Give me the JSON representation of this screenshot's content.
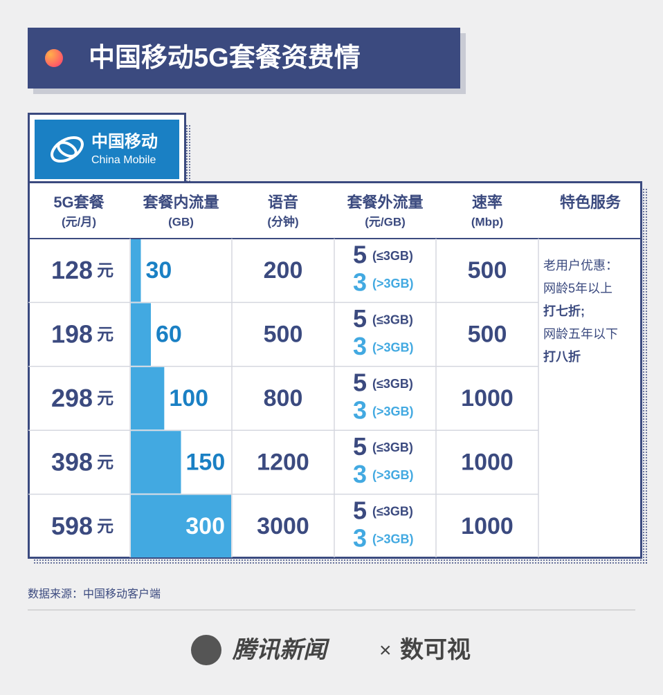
{
  "header": {
    "title": "中国移动5G套餐资费情"
  },
  "logo": {
    "name_cn": "中国移动",
    "name_en": "China Mobile"
  },
  "table": {
    "columns": [
      {
        "title": "5G套餐",
        "unit": "(元/月)"
      },
      {
        "title": "套餐内流量",
        "unit": "(GB)"
      },
      {
        "title": "语音",
        "unit": "(分钟)"
      },
      {
        "title": "套餐外流量",
        "unit": "(元/GB)"
      },
      {
        "title": "速率",
        "unit": "(Mbp)"
      },
      {
        "title": "特色服务"
      }
    ],
    "rows": [
      {
        "price": 128,
        "price_unit": "元",
        "data": 30,
        "voice": 200,
        "overage": [
          {
            "price": 5,
            "condition": "(≤3GB)"
          },
          {
            "price": 3,
            "condition": "(>3GB)"
          }
        ],
        "speed": 500
      },
      {
        "price": 198,
        "price_unit": "元",
        "data": 60,
        "voice": 500,
        "overage": [
          {
            "price": 5,
            "condition": "(≤3GB)"
          },
          {
            "price": 3,
            "condition": "(>3GB)"
          }
        ],
        "speed": 500
      },
      {
        "price": 298,
        "price_unit": "元",
        "data": 100,
        "voice": 800,
        "overage": [
          {
            "price": 5,
            "condition": "(≤3GB)"
          },
          {
            "price": 3,
            "condition": "(>3GB)"
          }
        ],
        "speed": 1000
      },
      {
        "price": 398,
        "price_unit": "元",
        "data": 150,
        "voice": 1200,
        "overage": [
          {
            "price": 5,
            "condition": "(≤3GB)"
          },
          {
            "price": 3,
            "condition": "(>3GB)"
          }
        ],
        "speed": 1000
      },
      {
        "price": 598,
        "price_unit": "元",
        "data": 300,
        "voice": 3000,
        "overage": [
          {
            "price": 5,
            "condition": "(≤3GB)"
          },
          {
            "price": 3,
            "condition": "(>3GB)"
          }
        ],
        "speed": 1000
      }
    ],
    "service": [
      "老用户优惠：",
      "网龄5年以上",
      "打七折;",
      "网龄五年以下",
      "打八折"
    ]
  },
  "source": "数据来源：中国移动客户端",
  "footer": {
    "brand": "腾讯新闻",
    "separator": "×",
    "partner": "数可视"
  }
}
